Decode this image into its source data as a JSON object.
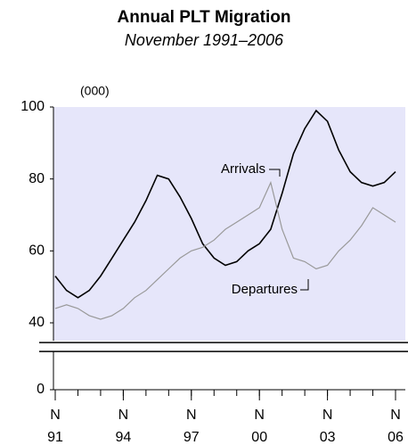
{
  "chart_data": {
    "type": "line",
    "title": "Annual PLT Migration",
    "subtitle": "November 1991–2006",
    "y_unit_label": "(000)",
    "x": [
      1991,
      1991.5,
      1992,
      1992.5,
      1993,
      1993.5,
      1994,
      1994.5,
      1995,
      1995.5,
      1996,
      1996.5,
      1997,
      1997.5,
      1998,
      1998.5,
      1999,
      1999.5,
      2000,
      2000.5,
      2001,
      2001.5,
      2002,
      2002.5,
      2003,
      2003.5,
      2004,
      2004.5,
      2005,
      2005.5,
      2006
    ],
    "series": [
      {
        "name": "Arrivals",
        "color": "#000000",
        "values": [
          53,
          49,
          47,
          49,
          53,
          58,
          63,
          68,
          74,
          81,
          80,
          75,
          69,
          62,
          58,
          56,
          57,
          60,
          62,
          66,
          76,
          87,
          94,
          99,
          96,
          88,
          82,
          79,
          78,
          79,
          82
        ]
      },
      {
        "name": "Departures",
        "color": "#999999",
        "values": [
          44,
          45,
          44,
          42,
          41,
          42,
          44,
          47,
          49,
          52,
          55,
          58,
          60,
          61,
          63,
          66,
          68,
          70,
          72,
          79,
          66,
          58,
          57,
          55,
          56,
          60,
          63,
          67,
          72,
          70,
          68
        ]
      }
    ],
    "xlim": [
      1991,
      2006
    ],
    "xticks": [
      {
        "value": 1991,
        "label": [
          "N",
          "91"
        ]
      },
      {
        "value": 1994,
        "label": [
          "N",
          "94"
        ]
      },
      {
        "value": 1997,
        "label": [
          "N",
          "97"
        ]
      },
      {
        "value": 2000,
        "label": [
          "N",
          "00"
        ]
      },
      {
        "value": 2003,
        "label": [
          "N",
          "03"
        ]
      },
      {
        "value": 2006,
        "label": [
          "N",
          "06"
        ]
      }
    ],
    "minor_xtick_step": 1,
    "ylim": [
      0,
      100
    ],
    "yticks": [
      0,
      40,
      60,
      80,
      100
    ],
    "y_break": [
      0,
      35
    ],
    "plot_background": "#e6e6fa"
  }
}
